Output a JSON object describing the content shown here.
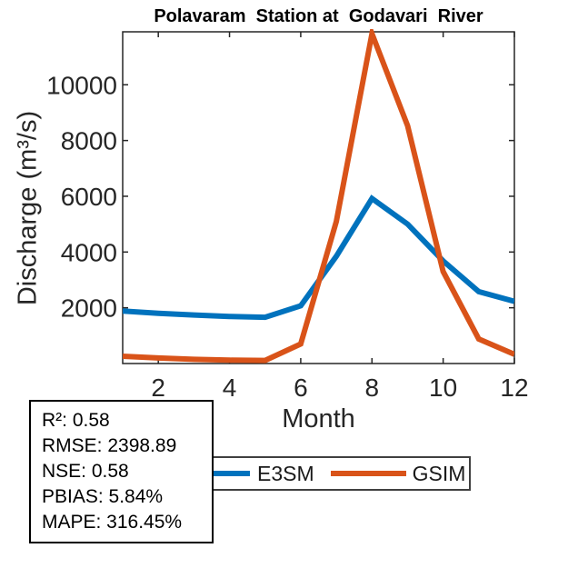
{
  "chart_data": {
    "type": "line",
    "title": "Polavaram  Station at  Godavari  River",
    "xlabel": "Month",
    "ylabel": "Discharge (m³/s)",
    "x": [
      1,
      2,
      3,
      4,
      5,
      6,
      7,
      8,
      9,
      10,
      11,
      12
    ],
    "series": [
      {
        "name": "E3SM",
        "color": "#0072BD",
        "values": [
          1880,
          1800,
          1740,
          1690,
          1660,
          2070,
          3850,
          5920,
          5000,
          3680,
          2580,
          2230
        ]
      },
      {
        "name": "GSIM",
        "color": "#D95319",
        "values": [
          260,
          200,
          150,
          120,
          110,
          700,
          5100,
          11830,
          8530,
          3300,
          880,
          330
        ]
      }
    ],
    "xlim": [
      1,
      12
    ],
    "ylim": [
      0,
      11900
    ],
    "xticks": [
      2,
      4,
      6,
      8,
      10,
      12
    ],
    "yticks": [
      2000,
      4000,
      6000,
      8000,
      10000
    ],
    "grid": false,
    "box": true,
    "axis_color": "#262626",
    "legend_position": "below-plot"
  },
  "legend": {
    "items": [
      {
        "label": "E3SM",
        "color": "#0072BD"
      },
      {
        "label": "GSIM",
        "color": "#D95319"
      }
    ]
  },
  "stats_box": {
    "lines": [
      "R²: 0.58",
      "RMSE: 2398.89",
      "NSE: 0.58",
      "PBIAS: 5.84%",
      "MAPE: 316.45%"
    ]
  }
}
